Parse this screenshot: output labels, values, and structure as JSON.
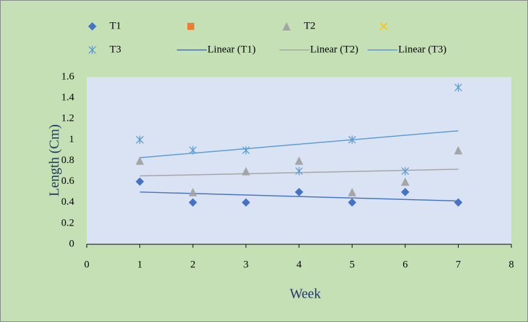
{
  "chart_data": {
    "type": "scatter",
    "x_label": "Week",
    "y_label": "Length (Cm)",
    "x": [
      1,
      2,
      3,
      4,
      5,
      6,
      7
    ],
    "series": [
      {
        "name": "T1",
        "color": "#4472c4",
        "marker": "diamond",
        "values": [
          0.6,
          0.4,
          0.4,
          0.5,
          0.4,
          0.5,
          0.4
        ]
      },
      {
        "name": null,
        "color": "#ed7d31",
        "marker": "square",
        "values": [
          null,
          null,
          null,
          null,
          null,
          null,
          null
        ]
      },
      {
        "name": "T2",
        "color": "#a5a5a5",
        "marker": "triangle",
        "values": [
          0.8,
          0.5,
          0.7,
          0.8,
          0.5,
          0.6,
          0.9
        ]
      },
      {
        "name": null,
        "color": "#ffc000",
        "marker": "x",
        "values": [
          null,
          null,
          null,
          null,
          null,
          null,
          null
        ]
      },
      {
        "name": "T3",
        "color": "#5b9bd5",
        "marker": "star",
        "values": [
          1.0,
          0.9,
          0.9,
          0.7,
          1.0,
          0.7,
          1.5
        ]
      }
    ],
    "trendlines": [
      {
        "name": "Linear (T1)",
        "series": 0,
        "color": "#4472c4"
      },
      {
        "name": "Linear (T2)",
        "series": 2,
        "color": "#a5a5a5"
      },
      {
        "name": "Linear (T3)",
        "series": 4,
        "color": "#5b9bd5"
      }
    ],
    "xlim": [
      0,
      8
    ],
    "xticks": [
      0,
      1,
      2,
      3,
      4,
      5,
      6,
      7,
      8
    ],
    "ylim": [
      0,
      1.6
    ],
    "yticks": [
      0,
      0.2,
      0.4,
      0.6,
      0.8,
      1,
      1.2,
      1.4,
      1.6
    ],
    "grid": false
  }
}
